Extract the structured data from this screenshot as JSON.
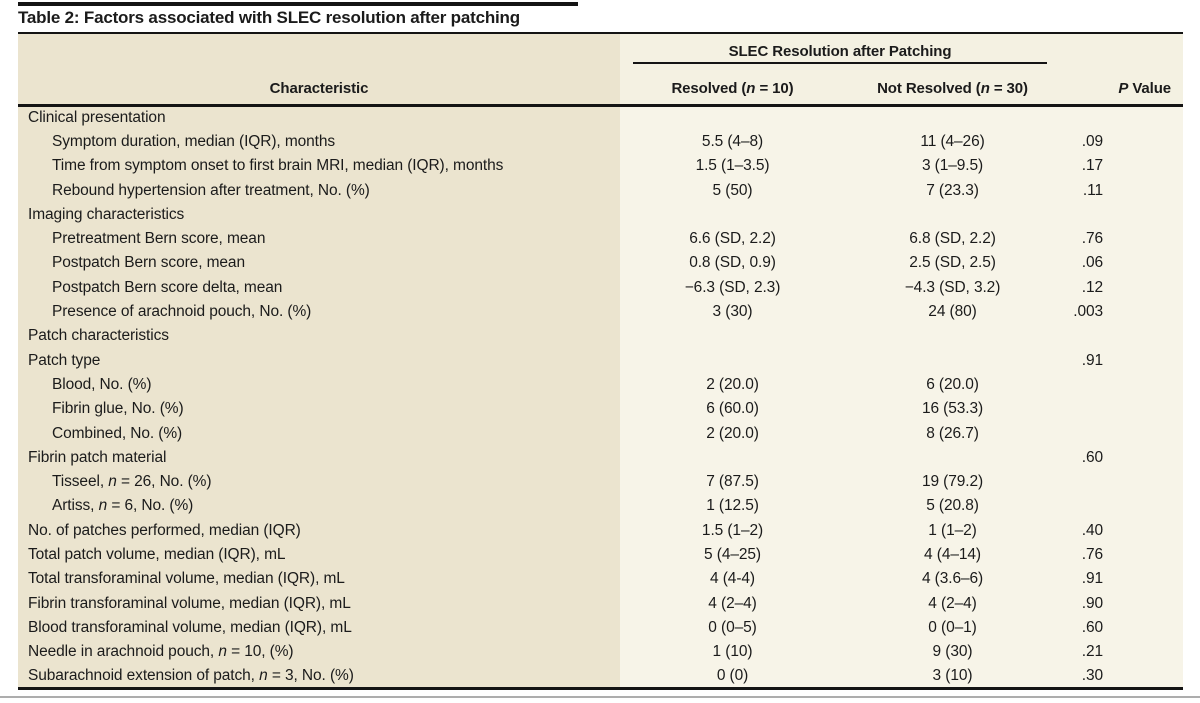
{
  "title": "Table 2: Factors associated with SLEC resolution after patching",
  "colors": {
    "characteristic_column_bg": "#EBE4CF",
    "data_area_bg": "#F7F4E8",
    "rule_black": "#141414",
    "hairline_gray": "#ADADAD"
  },
  "header": {
    "characteristic": "Characteristic",
    "spanner": "SLEC Resolution after Patching",
    "resolved": [
      [
        "Resolved ("
      ],
      [
        "n",
        "i"
      ],
      [
        " = 10)"
      ]
    ],
    "not_resolved": [
      [
        "Not Resolved ("
      ],
      [
        "n",
        "i"
      ],
      [
        " = 30)"
      ]
    ],
    "p_value": [
      [
        "P",
        "i"
      ],
      [
        " Value"
      ]
    ]
  },
  "table": {
    "rows": [
      {
        "indent": 0,
        "label": [
          [
            "Clinical presentation"
          ]
        ],
        "resolved": "",
        "not_resolved": "",
        "p": ""
      },
      {
        "indent": 1,
        "label": [
          [
            "Symptom duration, median (IQR), months"
          ]
        ],
        "resolved": "5.5 (4–8)",
        "not_resolved": "11 (4–26)",
        "p": ".09"
      },
      {
        "indent": 1,
        "label": [
          [
            "Time from symptom onset to first brain MRI, median (IQR), months"
          ]
        ],
        "resolved": "1.5 (1–3.5)",
        "not_resolved": "3 (1–9.5)",
        "p": ".17"
      },
      {
        "indent": 1,
        "label": [
          [
            "Rebound hypertension after treatment, No. (%)"
          ]
        ],
        "resolved": "5 (50)",
        "not_resolved": "7 (23.3)",
        "p": ".11"
      },
      {
        "indent": 0,
        "label": [
          [
            "Imaging characteristics"
          ]
        ],
        "resolved": "",
        "not_resolved": "",
        "p": ""
      },
      {
        "indent": 1,
        "label": [
          [
            "Pretreatment Bern score, mean"
          ]
        ],
        "resolved": "6.6 (SD, 2.2)",
        "not_resolved": "6.8 (SD, 2.2)",
        "p": ".76"
      },
      {
        "indent": 1,
        "label": [
          [
            "Postpatch Bern score, mean"
          ]
        ],
        "resolved": "0.8 (SD, 0.9)",
        "not_resolved": "2.5 (SD, 2.5)",
        "p": ".06"
      },
      {
        "indent": 1,
        "label": [
          [
            "Postpatch Bern score delta, mean"
          ]
        ],
        "resolved": "−6.3 (SD, 2.3)",
        "not_resolved": "−4.3 (SD, 3.2)",
        "p": ".12"
      },
      {
        "indent": 1,
        "label": [
          [
            "Presence of arachnoid pouch, No. (%)"
          ]
        ],
        "resolved": "3 (30)",
        "not_resolved": "24 (80)",
        "p": ".003"
      },
      {
        "indent": 0,
        "label": [
          [
            "Patch characteristics"
          ]
        ],
        "resolved": "",
        "not_resolved": "",
        "p": ""
      },
      {
        "indent": 0,
        "label": [
          [
            "Patch type"
          ]
        ],
        "resolved": "",
        "not_resolved": "",
        "p": ".91"
      },
      {
        "indent": 1,
        "label": [
          [
            "Blood, No. (%)"
          ]
        ],
        "resolved": "2 (20.0)",
        "not_resolved": "6 (20.0)",
        "p": ""
      },
      {
        "indent": 1,
        "label": [
          [
            "Fibrin glue, No. (%)"
          ]
        ],
        "resolved": "6 (60.0)",
        "not_resolved": "16 (53.3)",
        "p": ""
      },
      {
        "indent": 1,
        "label": [
          [
            "Combined, No. (%)"
          ]
        ],
        "resolved": "2 (20.0)",
        "not_resolved": "8 (26.7)",
        "p": ""
      },
      {
        "indent": 0,
        "label": [
          [
            "Fibrin patch material"
          ]
        ],
        "resolved": "",
        "not_resolved": "",
        "p": ".60"
      },
      {
        "indent": 1,
        "label": [
          [
            "Tisseel, "
          ],
          [
            "n",
            "i"
          ],
          [
            " = 26, No. (%)"
          ]
        ],
        "resolved": "7 (87.5)",
        "not_resolved": "19 (79.2)",
        "p": ""
      },
      {
        "indent": 1,
        "label": [
          [
            "Artiss, "
          ],
          [
            "n",
            "i"
          ],
          [
            " = 6, No. (%)"
          ]
        ],
        "resolved": "1 (12.5)",
        "not_resolved": "5 (20.8)",
        "p": ""
      },
      {
        "indent": 0,
        "label": [
          [
            "No. of patches performed, median (IQR)"
          ]
        ],
        "resolved": "1.5 (1–2)",
        "not_resolved": "1 (1–2)",
        "p": ".40"
      },
      {
        "indent": 0,
        "label": [
          [
            "Total patch volume, median (IQR), mL"
          ]
        ],
        "resolved": "5 (4–25)",
        "not_resolved": "4 (4–14)",
        "p": ".76"
      },
      {
        "indent": 0,
        "label": [
          [
            "Total transforaminal volume, median (IQR), mL"
          ]
        ],
        "resolved": "4 (4-4)",
        "not_resolved": "4 (3.6–6)",
        "p": ".91"
      },
      {
        "indent": 0,
        "label": [
          [
            "Fibrin transforaminal volume, median (IQR), mL"
          ]
        ],
        "resolved": "4 (2–4)",
        "not_resolved": "4 (2–4)",
        "p": ".90"
      },
      {
        "indent": 0,
        "label": [
          [
            "Blood transforaminal volume, median (IQR), mL"
          ]
        ],
        "resolved": "0 (0–5)",
        "not_resolved": "0 (0–1)",
        "p": ".60"
      },
      {
        "indent": 0,
        "label": [
          [
            "Needle in arachnoid pouch, "
          ],
          [
            "n",
            "i"
          ],
          [
            " = 10, (%)"
          ]
        ],
        "resolved": "1 (10)",
        "not_resolved": "9 (30)",
        "p": ".21"
      },
      {
        "indent": 0,
        "label": [
          [
            "Subarachnoid extension of patch, "
          ],
          [
            "n",
            "i"
          ],
          [
            " = 3, No. (%)"
          ]
        ],
        "resolved": "0 (0)",
        "not_resolved": "3 (10)",
        "p": ".30"
      }
    ]
  }
}
